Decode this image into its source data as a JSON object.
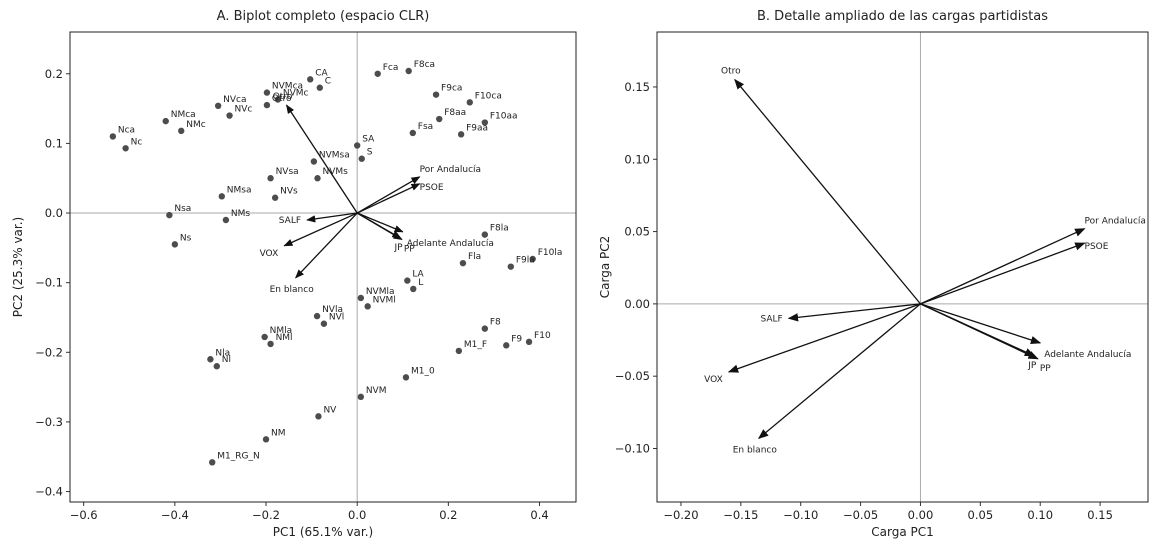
{
  "chart_data": [
    {
      "type": "scatter",
      "title": "A. Biplot completo (espacio CLR)",
      "xlabel": "PC1 (65.1% var.)",
      "ylabel": "PC2 (25.3% var.)",
      "xlim": [
        -0.63,
        0.48
      ],
      "ylim": [
        -0.415,
        0.26
      ],
      "xticks": [
        -0.6,
        -0.4,
        -0.2,
        0.0,
        0.2,
        0.4
      ],
      "xtick_labels": [
        "−0.6",
        "−0.4",
        "−0.2",
        "0.0",
        "0.2",
        "0.4"
      ],
      "yticks": [
        -0.4,
        -0.3,
        -0.2,
        -0.1,
        0.0,
        0.1,
        0.2
      ],
      "ytick_labels": [
        "−0.4",
        "−0.3",
        "−0.2",
        "−0.1",
        "0.0",
        "0.1",
        "0.2"
      ],
      "grid": false,
      "reference_lines": {
        "x": 0,
        "y": 0
      },
      "point_color": "#4d4d4d",
      "points": [
        {
          "label": "Fca",
          "x": 0.045,
          "y": 0.2
        },
        {
          "label": "F8ca",
          "x": 0.113,
          "y": 0.204
        },
        {
          "label": "F9ca",
          "x": 0.173,
          "y": 0.17
        },
        {
          "label": "F10ca",
          "x": 0.247,
          "y": 0.159
        },
        {
          "label": "F8aa",
          "x": 0.18,
          "y": 0.135
        },
        {
          "label": "F10aa",
          "x": 0.28,
          "y": 0.13
        },
        {
          "label": "F9aa",
          "x": 0.228,
          "y": 0.113
        },
        {
          "label": "Fsa",
          "x": 0.122,
          "y": 0.115
        },
        {
          "label": "CA",
          "x": -0.103,
          "y": 0.192
        },
        {
          "label": "C",
          "x": -0.082,
          "y": 0.18
        },
        {
          "label": "NVMca",
          "x": -0.198,
          "y": 0.173
        },
        {
          "label": "NVMc",
          "x": -0.174,
          "y": 0.163
        },
        {
          "label": "Otro",
          "x": -0.198,
          "y": 0.155
        },
        {
          "label": "NVca",
          "x": -0.305,
          "y": 0.154
        },
        {
          "label": "NVc",
          "x": -0.28,
          "y": 0.14
        },
        {
          "label": "NMca",
          "x": -0.42,
          "y": 0.132
        },
        {
          "label": "NMc",
          "x": -0.386,
          "y": 0.118
        },
        {
          "label": "Nca",
          "x": -0.536,
          "y": 0.11
        },
        {
          "label": "Nc",
          "x": -0.508,
          "y": 0.093
        },
        {
          "label": "SA",
          "x": 0.0,
          "y": 0.097
        },
        {
          "label": "S",
          "x": 0.01,
          "y": 0.078
        },
        {
          "label": "NVMsa",
          "x": -0.095,
          "y": 0.074
        },
        {
          "label": "NVMs",
          "x": -0.087,
          "y": 0.05
        },
        {
          "label": "NVsa",
          "x": -0.19,
          "y": 0.05
        },
        {
          "label": "NVs",
          "x": -0.18,
          "y": 0.022
        },
        {
          "label": "NMsa",
          "x": -0.297,
          "y": 0.024
        },
        {
          "label": "NMs",
          "x": -0.288,
          "y": -0.01
        },
        {
          "label": "Nsa",
          "x": -0.412,
          "y": -0.003
        },
        {
          "label": "Ns",
          "x": -0.4,
          "y": -0.045
        },
        {
          "label": "F8la",
          "x": 0.28,
          "y": -0.031
        },
        {
          "label": "F10la",
          "x": 0.385,
          "y": -0.066
        },
        {
          "label": "F9la",
          "x": 0.337,
          "y": -0.077
        },
        {
          "label": "Fla",
          "x": 0.232,
          "y": -0.072
        },
        {
          "label": "LA",
          "x": 0.11,
          "y": -0.097
        },
        {
          "label": "L",
          "x": 0.123,
          "y": -0.109
        },
        {
          "label": "NVMla",
          "x": 0.008,
          "y": -0.122
        },
        {
          "label": "NVMl",
          "x": 0.023,
          "y": -0.134
        },
        {
          "label": "NVla",
          "x": -0.088,
          "y": -0.148
        },
        {
          "label": "NVl",
          "x": -0.073,
          "y": -0.159
        },
        {
          "label": "NMla",
          "x": -0.203,
          "y": -0.178
        },
        {
          "label": "NMl",
          "x": -0.19,
          "y": -0.188
        },
        {
          "label": "Nla",
          "x": -0.322,
          "y": -0.21
        },
        {
          "label": "Nl",
          "x": -0.308,
          "y": -0.22
        },
        {
          "label": "F8",
          "x": 0.28,
          "y": -0.166
        },
        {
          "label": "F10",
          "x": 0.377,
          "y": -0.185
        },
        {
          "label": "F9",
          "x": 0.327,
          "y": -0.19
        },
        {
          "label": "M1_F",
          "x": 0.223,
          "y": -0.198
        },
        {
          "label": "M1_0",
          "x": 0.107,
          "y": -0.236
        },
        {
          "label": "NVM",
          "x": 0.008,
          "y": -0.264
        },
        {
          "label": "NV",
          "x": -0.085,
          "y": -0.292
        },
        {
          "label": "NM",
          "x": -0.2,
          "y": -0.325
        },
        {
          "label": "M1_RG_N",
          "x": -0.318,
          "y": -0.358
        }
      ],
      "arrows": [
        {
          "label": "Otro",
          "x": -0.155,
          "y": 0.155
        },
        {
          "label": "Por Andalucía",
          "x": 0.137,
          "y": 0.052
        },
        {
          "label": "PSOE",
          "x": 0.137,
          "y": 0.042
        },
        {
          "label": "SALF",
          "x": -0.11,
          "y": -0.01
        },
        {
          "label": "Adelante Andalucía",
          "x": 0.1,
          "y": -0.027
        },
        {
          "label": "PP",
          "x": 0.098,
          "y": -0.038
        },
        {
          "label": "JP",
          "x": 0.095,
          "y": -0.036
        },
        {
          "label": "VOX",
          "x": -0.16,
          "y": -0.047
        },
        {
          "label": "En blanco",
          "x": -0.135,
          "y": -0.093
        }
      ]
    },
    {
      "type": "scatter",
      "title": "B. Detalle ampliado de las cargas partidistas",
      "xlabel": "Carga PC1",
      "ylabel": "Carga PC2",
      "xlim": [
        -0.22,
        0.19
      ],
      "ylim": [
        -0.137,
        0.188
      ],
      "xticks": [
        -0.2,
        -0.15,
        -0.1,
        -0.05,
        0.0,
        0.05,
        0.1,
        0.15
      ],
      "xtick_labels": [
        "−0.20",
        "−0.15",
        "−0.10",
        "−0.05",
        "0.00",
        "0.05",
        "0.10",
        "0.15"
      ],
      "yticks": [
        -0.1,
        -0.05,
        0.0,
        0.05,
        0.1,
        0.15
      ],
      "ytick_labels": [
        "−0.10",
        "−0.05",
        "0.00",
        "0.05",
        "0.10",
        "0.15"
      ],
      "grid": false,
      "reference_lines": {
        "x": 0,
        "y": 0
      },
      "arrows": [
        {
          "label": "Otro",
          "x": -0.155,
          "y": 0.155
        },
        {
          "label": "Por Andalucía",
          "x": 0.137,
          "y": 0.052
        },
        {
          "label": "PSOE",
          "x": 0.137,
          "y": 0.042
        },
        {
          "label": "SALF",
          "x": -0.11,
          "y": -0.01
        },
        {
          "label": "Adelante Andalucía",
          "x": 0.1,
          "y": -0.027
        },
        {
          "label": "PP",
          "x": 0.098,
          "y": -0.038
        },
        {
          "label": "JP",
          "x": 0.095,
          "y": -0.036
        },
        {
          "label": "VOX",
          "x": -0.16,
          "y": -0.047
        },
        {
          "label": "En blanco",
          "x": -0.135,
          "y": -0.093
        }
      ]
    }
  ]
}
